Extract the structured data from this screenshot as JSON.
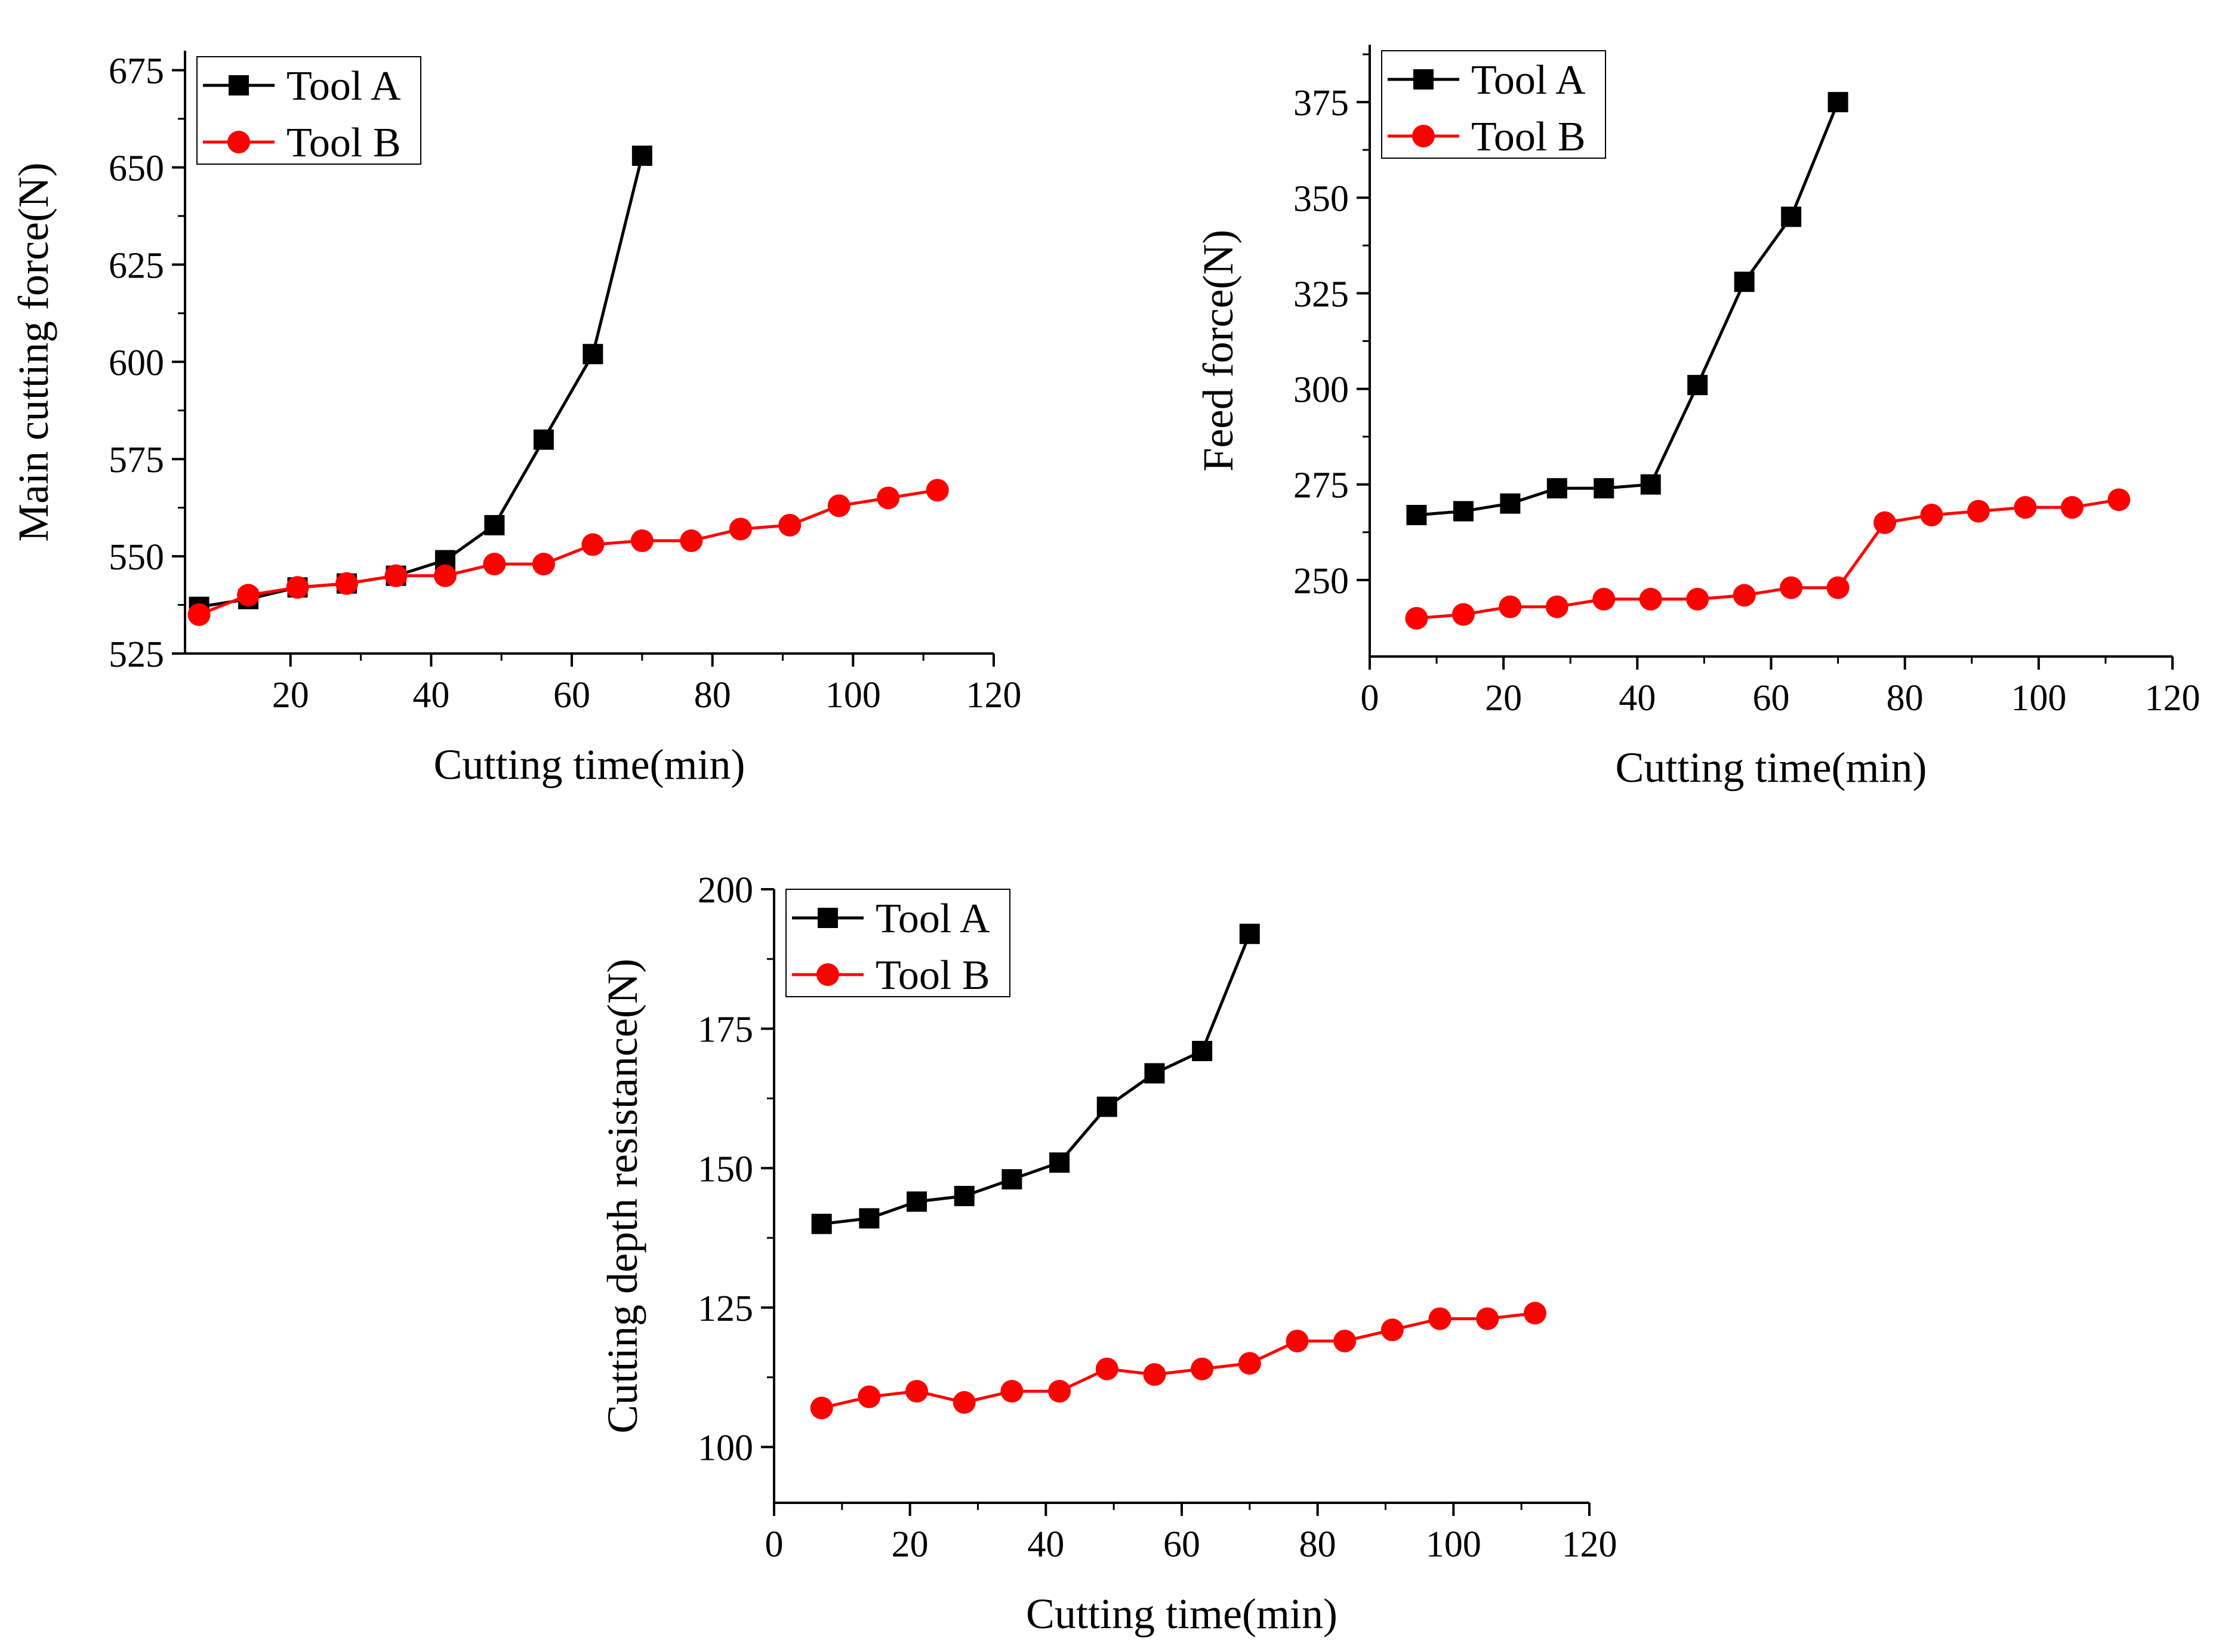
{
  "chart_data": [
    {
      "type": "line",
      "title": "",
      "xlabel": "Cutting time(min)",
      "ylabel": "Main cutting force(N)",
      "xlim": [
        5,
        120
      ],
      "ylim": [
        525,
        680
      ],
      "xticks": [
        20,
        40,
        60,
        80,
        100,
        120
      ],
      "yticks": [
        525,
        550,
        575,
        600,
        625,
        650,
        675
      ],
      "legend": "top-left",
      "series": [
        {
          "name": "Tool A",
          "color": "#000000",
          "marker": "square",
          "x": [
            7,
            14,
            21,
            28,
            35,
            42,
            49,
            56,
            63,
            70
          ],
          "values": [
            537,
            539,
            542,
            543,
            545,
            549,
            558,
            580,
            602,
            653
          ]
        },
        {
          "name": "Tool B",
          "color": "#ff0000",
          "marker": "circle",
          "x": [
            7,
            14,
            21,
            28,
            35,
            42,
            49,
            56,
            63,
            70,
            77,
            84,
            91,
            98,
            105,
            112
          ],
          "values": [
            535,
            540,
            542,
            543,
            545,
            545,
            548,
            548,
            553,
            554,
            554,
            557,
            558,
            563,
            565,
            567
          ]
        }
      ]
    },
    {
      "type": "line",
      "title": "",
      "xlabel": "Cutting time(min)",
      "ylabel": "Feed force(N)",
      "xlim": [
        0,
        120
      ],
      "ylim": [
        230,
        390
      ],
      "xticks": [
        0,
        20,
        40,
        60,
        80,
        100,
        120
      ],
      "yticks": [
        250,
        275,
        300,
        325,
        350,
        375
      ],
      "legend": "top-left",
      "series": [
        {
          "name": "Tool A",
          "color": "#000000",
          "marker": "square",
          "x": [
            7,
            14,
            21,
            28,
            35,
            42,
            49,
            56,
            63,
            70
          ],
          "values": [
            267,
            268,
            270,
            274,
            274,
            275,
            301,
            328,
            345,
            375
          ]
        },
        {
          "name": "Tool B",
          "color": "#ff0000",
          "marker": "circle",
          "x": [
            7,
            14,
            21,
            28,
            35,
            42,
            49,
            56,
            63,
            70,
            77,
            84,
            91,
            98,
            105,
            112
          ],
          "values": [
            240,
            241,
            243,
            243,
            245,
            245,
            245,
            246,
            248,
            248,
            265,
            267,
            268,
            269,
            269,
            271
          ]
        }
      ]
    },
    {
      "type": "line",
      "title": "",
      "xlabel": "Cutting time(min)",
      "ylabel": "Cutting depth resistance(N)",
      "xlim": [
        0,
        120
      ],
      "ylim": [
        90,
        200
      ],
      "xticks": [
        0,
        20,
        40,
        60,
        80,
        100,
        120
      ],
      "yticks": [
        100,
        125,
        150,
        175,
        200
      ],
      "legend": "top-left",
      "series": [
        {
          "name": "Tool A",
          "color": "#000000",
          "marker": "square",
          "x": [
            7,
            14,
            21,
            28,
            35,
            42,
            49,
            56,
            63,
            70
          ],
          "values": [
            140,
            141,
            144,
            145,
            148,
            151,
            161,
            167,
            171,
            192
          ]
        },
        {
          "name": "Tool B",
          "color": "#ff0000",
          "marker": "circle",
          "x": [
            7,
            14,
            21,
            28,
            35,
            42,
            49,
            56,
            63,
            70,
            77,
            84,
            91,
            98,
            105,
            112
          ],
          "values": [
            107,
            109,
            110,
            108,
            110,
            110,
            114,
            113,
            114,
            115,
            119,
            119,
            121,
            123,
            123,
            124
          ]
        }
      ]
    }
  ]
}
